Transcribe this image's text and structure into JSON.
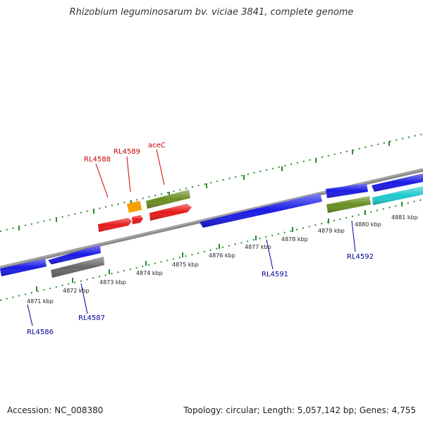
{
  "title": "Rhizobium leguminosarum bv. viciae 3841, complete genome",
  "footer": {
    "accession": "Accession: NC_008380",
    "topology": "Topology: circular; Length: 5,057,142 bp; Genes: 4,755"
  },
  "colors": {
    "backbone": "#888888",
    "tick": "#2e8b2e",
    "blue": "#1a1ae6",
    "red": "#e61a1a",
    "olive": "#6b8e23",
    "orange": "#f5a000",
    "gray": "#666666",
    "cyan": "#20c8d0",
    "label_top": "#cc0000",
    "label_bottom": "#000099"
  },
  "scale_labels": [
    "4871 kbp",
    "4872 kbp",
    "4873 kbp",
    "4874 kbp",
    "4875 kbp",
    "4876 kbp",
    "4877 kbp",
    "4878 kbp",
    "4879 kbp",
    "4880 kbp",
    "4881 kbp"
  ],
  "gene_labels": {
    "top": [
      "RL4588",
      "RL4589",
      "aceC"
    ],
    "bottom": [
      "RL4586",
      "RL4587",
      "RL4591",
      "RL4592"
    ]
  }
}
